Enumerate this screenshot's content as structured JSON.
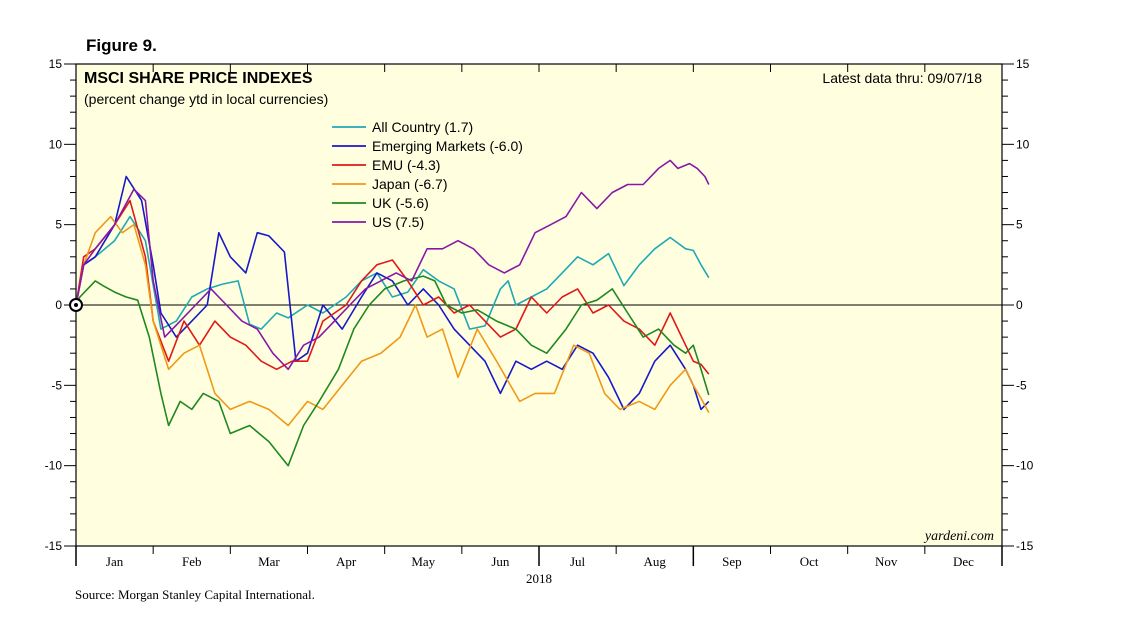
{
  "figure_label": "Figure 9.",
  "source": "Source: Morgan Stanley Capital International.",
  "colors": {
    "background": "#ffffe0",
    "frame": "#000000"
  },
  "chart_data": {
    "type": "line",
    "title": "MSCI SHARE PRICE INDEXES",
    "subtitle": "(percent change ytd in local currencies)",
    "note": "Latest data thru: 09/07/18",
    "watermark": "yardeni.com",
    "xlabel": "2018",
    "ylabel": "",
    "x_unit": "month index (0 = Jan 1, 12 = Dec 31)",
    "xlim": [
      0,
      12
    ],
    "ylim": [
      -15,
      15
    ],
    "yticks": [
      -15,
      -10,
      -5,
      0,
      5,
      10,
      15
    ],
    "month_labels": [
      "Jan",
      "Feb",
      "Mar",
      "Apr",
      "May",
      "Jun",
      "Jul",
      "Aug",
      "Sep",
      "Oct",
      "Nov",
      "Dec"
    ],
    "series": [
      {
        "name": "All Country",
        "legend": "All Country (1.7)",
        "color": "#20a8b4",
        "x": [
          0,
          0.1,
          0.25,
          0.5,
          0.7,
          0.9,
          1.1,
          1.3,
          1.5,
          1.7,
          1.9,
          2.1,
          2.25,
          2.4,
          2.6,
          2.75,
          3.0,
          3.2,
          3.5,
          3.7,
          3.9,
          4.1,
          4.3,
          4.5,
          4.7,
          4.9,
          5.1,
          5.3,
          5.5,
          5.6,
          5.7,
          5.9,
          6.1,
          6.3,
          6.5,
          6.7,
          6.9,
          7.1,
          7.3,
          7.5,
          7.7,
          7.9,
          8.0,
          8.1,
          8.2
        ],
        "values": [
          0,
          2.5,
          3,
          4,
          5.5,
          4,
          -1.5,
          -1,
          0.5,
          1,
          1.3,
          1.5,
          -1.2,
          -1.5,
          -0.5,
          -0.8,
          0,
          -0.5,
          0.5,
          1.5,
          2,
          0.5,
          0.8,
          2.2,
          1.5,
          1,
          -1.5,
          -1.3,
          1,
          1.5,
          0,
          0.5,
          1,
          2,
          3,
          2.5,
          3.2,
          1.2,
          2.5,
          3.5,
          4.2,
          3.5,
          3.4,
          2.5,
          1.7
        ]
      },
      {
        "name": "Emerging Markets",
        "legend": "Emerging Markets (-6.0)",
        "color": "#1818c8",
        "x": [
          0,
          0.1,
          0.25,
          0.5,
          0.65,
          0.85,
          1.0,
          1.1,
          1.3,
          1.5,
          1.7,
          1.85,
          2.0,
          2.2,
          2.35,
          2.5,
          2.7,
          2.85,
          3.0,
          3.2,
          3.45,
          3.7,
          3.9,
          4.1,
          4.3,
          4.5,
          4.7,
          4.9,
          5.1,
          5.3,
          5.5,
          5.7,
          5.9,
          6.1,
          6.3,
          6.5,
          6.7,
          6.9,
          7.1,
          7.3,
          7.5,
          7.7,
          7.9,
          8.0,
          8.1,
          8.2
        ],
        "values": [
          0,
          2.5,
          3,
          5,
          8,
          6.5,
          2.5,
          -0.5,
          -2,
          -1,
          0,
          4.5,
          3,
          2,
          4.5,
          4.3,
          3.3,
          -3.5,
          -3,
          0,
          -1.5,
          0.5,
          2,
          1.5,
          0,
          1,
          0,
          -1.5,
          -2.5,
          -3.5,
          -5.5,
          -3.5,
          -4,
          -3.5,
          -4,
          -2.5,
          -3,
          -4.5,
          -6.5,
          -5.5,
          -3.5,
          -2.5,
          -4,
          -5,
          -6.5,
          -6
        ]
      },
      {
        "name": "EMU",
        "legend": "EMU (-4.3)",
        "color": "#e01818",
        "x": [
          0,
          0.1,
          0.25,
          0.5,
          0.7,
          0.9,
          1.0,
          1.2,
          1.4,
          1.6,
          1.8,
          2.0,
          2.2,
          2.4,
          2.6,
          2.8,
          3.0,
          3.2,
          3.5,
          3.7,
          3.9,
          4.1,
          4.3,
          4.5,
          4.7,
          4.9,
          5.1,
          5.3,
          5.5,
          5.7,
          5.9,
          6.1,
          6.3,
          6.5,
          6.7,
          6.9,
          7.1,
          7.3,
          7.5,
          7.7,
          7.9,
          8.0,
          8.1,
          8.2
        ],
        "values": [
          0,
          3,
          3.5,
          5,
          6.5,
          3,
          -1,
          -3.5,
          -1,
          -2.5,
          -1,
          -2,
          -2.5,
          -3.5,
          -4,
          -3.5,
          -3.5,
          -1,
          0,
          1.5,
          2.5,
          2.8,
          1.5,
          0,
          0.5,
          -0.5,
          0,
          -1,
          -2,
          -1.5,
          0.5,
          -0.5,
          0.5,
          1,
          -0.5,
          0,
          -1,
          -1.5,
          -2.5,
          -0.5,
          -2.5,
          -3.5,
          -3.7,
          -4.3
        ]
      },
      {
        "name": "Japan",
        "legend": "Japan (-6.7)",
        "color": "#f09818",
        "x": [
          0,
          0.1,
          0.25,
          0.45,
          0.6,
          0.75,
          0.9,
          1.0,
          1.2,
          1.4,
          1.6,
          1.8,
          2.0,
          2.25,
          2.5,
          2.75,
          3.0,
          3.2,
          3.45,
          3.7,
          3.95,
          4.2,
          4.4,
          4.55,
          4.75,
          4.95,
          5.2,
          5.45,
          5.75,
          5.95,
          6.2,
          6.45,
          6.65,
          6.85,
          7.05,
          7.3,
          7.5,
          7.7,
          7.9,
          8.0,
          8.1,
          8.2
        ],
        "values": [
          0,
          2.5,
          4.5,
          5.5,
          4.5,
          5,
          2.5,
          -1,
          -4,
          -3,
          -2.5,
          -5.5,
          -6.5,
          -6,
          -6.5,
          -7.5,
          -6,
          -6.5,
          -5,
          -3.5,
          -3,
          -2,
          0,
          -2,
          -1.5,
          -4.5,
          -1.5,
          -3.5,
          -6,
          -5.5,
          -5.5,
          -2.5,
          -3,
          -5.5,
          -6.5,
          -6,
          -6.5,
          -5,
          -4,
          -5,
          -5.8,
          -6.7
        ]
      },
      {
        "name": "UK",
        "legend": "UK (-5.6)",
        "color": "#208820",
        "x": [
          0,
          0.05,
          0.15,
          0.25,
          0.35,
          0.5,
          0.65,
          0.8,
          0.95,
          1.1,
          1.2,
          1.35,
          1.5,
          1.65,
          1.85,
          2.0,
          2.25,
          2.5,
          2.75,
          2.95,
          3.15,
          3.4,
          3.6,
          3.8,
          4.0,
          4.25,
          4.5,
          4.65,
          4.8,
          5.0,
          5.2,
          5.45,
          5.7,
          5.9,
          6.1,
          6.35,
          6.55,
          6.75,
          6.95,
          7.15,
          7.35,
          7.55,
          7.75,
          7.9,
          8.0,
          8.1,
          8.2
        ],
        "values": [
          0,
          0.5,
          1,
          1.5,
          1.2,
          0.8,
          0.5,
          0.3,
          -2,
          -5.5,
          -7.5,
          -6,
          -6.5,
          -5.5,
          -6,
          -8,
          -7.5,
          -8.5,
          -10,
          -7.5,
          -6,
          -4,
          -1.5,
          0,
          1,
          1.5,
          1.8,
          1.5,
          0,
          -0.5,
          -0.3,
          -1,
          -1.5,
          -2.5,
          -3,
          -1.5,
          0,
          0.3,
          1,
          -0.5,
          -2,
          -1.5,
          -2.5,
          -3,
          -2.5,
          -4,
          -5.6
        ]
      },
      {
        "name": "US",
        "legend": "US (7.5)",
        "color": "#8818a8",
        "x": [
          0,
          0.1,
          0.25,
          0.5,
          0.75,
          0.9,
          1.0,
          1.15,
          1.35,
          1.55,
          1.75,
          1.95,
          2.15,
          2.35,
          2.55,
          2.75,
          2.95,
          3.15,
          3.35,
          3.55,
          3.75,
          3.95,
          4.15,
          4.35,
          4.55,
          4.75,
          4.95,
          5.15,
          5.35,
          5.55,
          5.75,
          5.95,
          6.15,
          6.35,
          6.55,
          6.75,
          6.95,
          7.15,
          7.35,
          7.55,
          7.7,
          7.8,
          7.95,
          8.05,
          8.15,
          8.2
        ],
        "values": [
          0,
          2.5,
          3.5,
          5,
          7.2,
          6.5,
          1.5,
          -2,
          -1,
          0,
          1,
          0,
          -1,
          -1.5,
          -3,
          -4,
          -2.5,
          -2,
          -1,
          0,
          1,
          1.5,
          2,
          1.5,
          3.5,
          3.5,
          4,
          3.5,
          2.5,
          2,
          2.5,
          4.5,
          5,
          5.5,
          7,
          6,
          7,
          7.5,
          7.5,
          8.5,
          9,
          8.5,
          8.8,
          8.5,
          8,
          7.5
        ]
      }
    ],
    "right_axis_mirror": true
  }
}
